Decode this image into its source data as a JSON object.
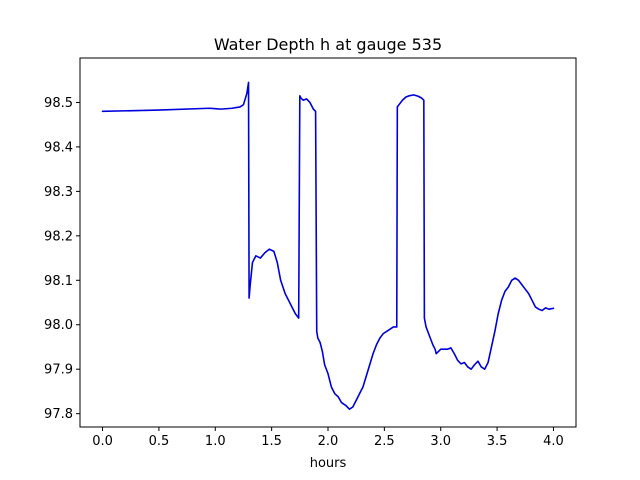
{
  "chart_data": {
    "type": "line",
    "title": "Water Depth h at gauge 535",
    "xlabel": "hours",
    "ylabel": "",
    "xlim": [
      -0.2,
      4.2
    ],
    "ylim": [
      97.77,
      98.6
    ],
    "xticks": [
      0.0,
      0.5,
      1.0,
      1.5,
      2.0,
      2.5,
      3.0,
      3.5,
      4.0
    ],
    "xtick_labels": [
      "0.0",
      "0.5",
      "1.0",
      "1.5",
      "2.0",
      "2.5",
      "3.0",
      "3.5",
      "4.0"
    ],
    "yticks": [
      97.8,
      97.9,
      98.0,
      98.1,
      98.2,
      98.3,
      98.4,
      98.5
    ],
    "ytick_labels": [
      "97.8",
      "97.9",
      "98.0",
      "98.1",
      "98.2",
      "98.3",
      "98.4",
      "98.5"
    ],
    "grid": false,
    "series": [
      {
        "color": "#0000dd",
        "x": [
          0.0,
          0.5,
          0.95,
          1.0,
          1.05,
          1.15,
          1.22,
          1.25,
          1.28,
          1.295,
          1.3,
          1.31,
          1.33,
          1.36,
          1.4,
          1.44,
          1.48,
          1.52,
          1.55,
          1.58,
          1.62,
          1.65,
          1.68,
          1.71,
          1.74,
          1.75,
          1.76,
          1.78,
          1.81,
          1.84,
          1.87,
          1.89,
          1.9,
          1.91,
          1.93,
          1.95,
          1.97,
          2.0,
          2.03,
          2.06,
          2.09,
          2.12,
          2.16,
          2.19,
          2.22,
          2.25,
          2.28,
          2.31,
          2.34,
          2.37,
          2.4,
          2.43,
          2.46,
          2.49,
          2.52,
          2.55,
          2.58,
          2.61,
          2.615,
          2.63,
          2.66,
          2.69,
          2.72,
          2.76,
          2.8,
          2.83,
          2.85,
          2.855,
          2.87,
          2.9,
          2.93,
          2.95,
          2.96,
          2.98,
          3.0,
          3.03,
          3.06,
          3.09,
          3.12,
          3.15,
          3.18,
          3.21,
          3.24,
          3.27,
          3.3,
          3.33,
          3.36,
          3.39,
          3.42,
          3.45,
          3.48,
          3.51,
          3.54,
          3.57,
          3.6,
          3.63,
          3.66,
          3.69,
          3.72,
          3.75,
          3.78,
          3.81,
          3.84,
          3.87,
          3.9,
          3.93,
          3.96,
          4.0
        ],
        "y": [
          98.48,
          98.483,
          98.487,
          98.486,
          98.485,
          98.487,
          98.49,
          98.495,
          98.52,
          98.545,
          98.06,
          98.09,
          98.14,
          98.155,
          98.15,
          98.162,
          98.17,
          98.165,
          98.14,
          98.1,
          98.07,
          98.055,
          98.04,
          98.025,
          98.015,
          98.515,
          98.51,
          98.505,
          98.508,
          98.5,
          98.485,
          98.48,
          97.985,
          97.97,
          97.96,
          97.94,
          97.91,
          97.89,
          97.86,
          97.845,
          97.838,
          97.825,
          97.818,
          97.81,
          97.815,
          97.83,
          97.845,
          97.86,
          97.885,
          97.91,
          97.935,
          97.955,
          97.97,
          97.98,
          97.985,
          97.99,
          97.995,
          97.995,
          98.49,
          98.495,
          98.505,
          98.512,
          98.515,
          98.517,
          98.514,
          98.51,
          98.505,
          98.015,
          97.995,
          97.975,
          97.955,
          97.945,
          97.935,
          97.94,
          97.945,
          97.945,
          97.945,
          97.948,
          97.935,
          97.92,
          97.912,
          97.915,
          97.905,
          97.9,
          97.91,
          97.918,
          97.905,
          97.9,
          97.915,
          97.95,
          97.985,
          98.025,
          98.055,
          98.075,
          98.085,
          98.1,
          98.105,
          98.1,
          98.09,
          98.08,
          98.07,
          98.055,
          98.04,
          98.035,
          98.032,
          98.038,
          98.035,
          98.037
        ]
      }
    ]
  }
}
